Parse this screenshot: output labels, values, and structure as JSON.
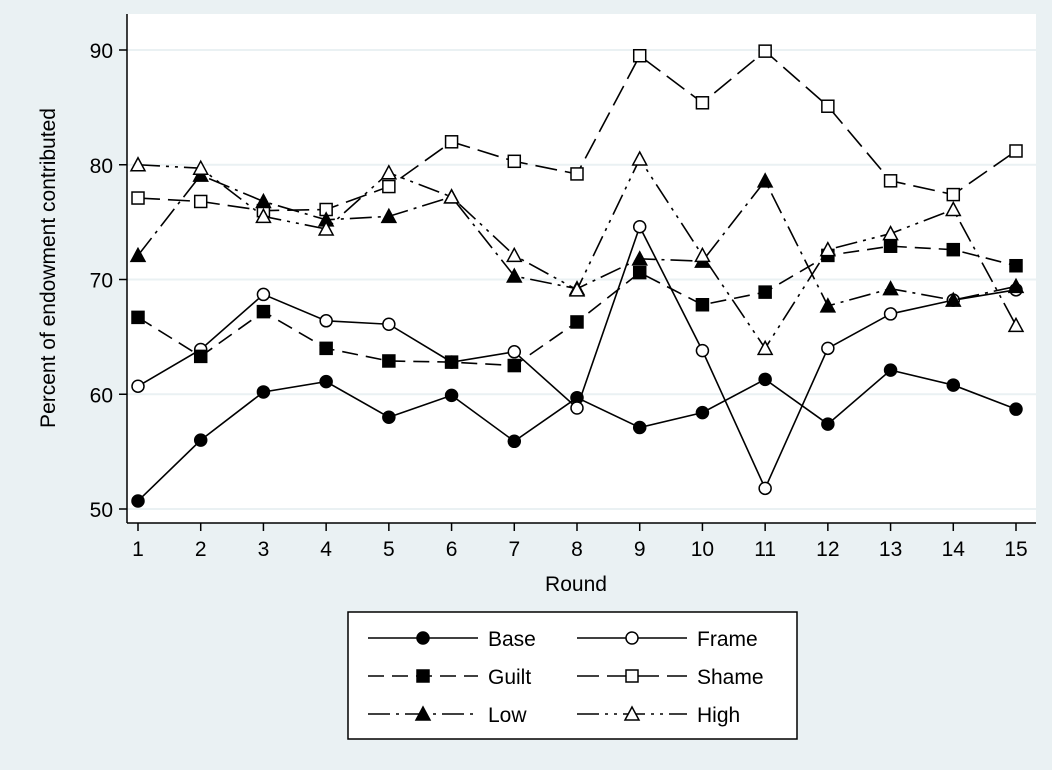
{
  "chart_data": {
    "type": "line",
    "title": "",
    "xlabel": "Round",
    "ylabel": "Percent of endowment contributed",
    "x": [
      1,
      2,
      3,
      4,
      5,
      6,
      7,
      8,
      9,
      10,
      11,
      12,
      13,
      14,
      15
    ],
    "x_ticks": [
      "1",
      "2",
      "3",
      "4",
      "5",
      "6",
      "7",
      "8",
      "9",
      "10",
      "11",
      "12",
      "13",
      "14",
      "15"
    ],
    "y_ticks": [
      "50",
      "60",
      "70",
      "80",
      "90"
    ],
    "ylim": [
      50,
      90
    ],
    "xlim": [
      1,
      15
    ],
    "grid": "horizontal",
    "legend_position": "bottom",
    "series": [
      {
        "name": "Base",
        "marker": "filled-circle",
        "dash": "solid",
        "values": [
          50.7,
          56.0,
          60.2,
          61.1,
          58.0,
          59.9,
          55.9,
          59.7,
          57.1,
          58.4,
          61.3,
          57.4,
          62.1,
          60.8,
          58.7
        ]
      },
      {
        "name": "Frame",
        "marker": "hollow-circle",
        "dash": "solid",
        "values": [
          60.7,
          63.9,
          68.7,
          66.4,
          66.1,
          62.8,
          63.7,
          58.8,
          74.6,
          63.8,
          51.8,
          64.0,
          67.0,
          68.2,
          69.1
        ]
      },
      {
        "name": "Guilt",
        "marker": "filled-square",
        "dash": "dashed",
        "values": [
          66.7,
          63.3,
          67.2,
          64.0,
          62.9,
          62.8,
          62.5,
          66.3,
          70.6,
          67.8,
          68.9,
          72.1,
          72.9,
          72.6,
          71.2
        ]
      },
      {
        "name": "Shame",
        "marker": "hollow-square",
        "dash": "longdash",
        "values": [
          77.1,
          76.8,
          76.0,
          76.1,
          78.1,
          82.0,
          80.3,
          79.2,
          89.5,
          85.4,
          89.9,
          85.1,
          78.6,
          77.4,
          81.2
        ]
      },
      {
        "name": "Low",
        "marker": "filled-triangle",
        "dash": "dashdot",
        "values": [
          72.1,
          79.1,
          76.8,
          75.2,
          75.5,
          77.2,
          70.3,
          69.2,
          71.8,
          71.6,
          78.6,
          67.7,
          69.2,
          68.2,
          69.4
        ]
      },
      {
        "name": "High",
        "marker": "hollow-triangle",
        "dash": "dashdotdot",
        "values": [
          80.0,
          79.7,
          75.5,
          74.4,
          79.3,
          77.2,
          72.1,
          69.1,
          80.5,
          72.1,
          64.0,
          72.6,
          74.0,
          76.1,
          66.0
        ]
      }
    ]
  }
}
